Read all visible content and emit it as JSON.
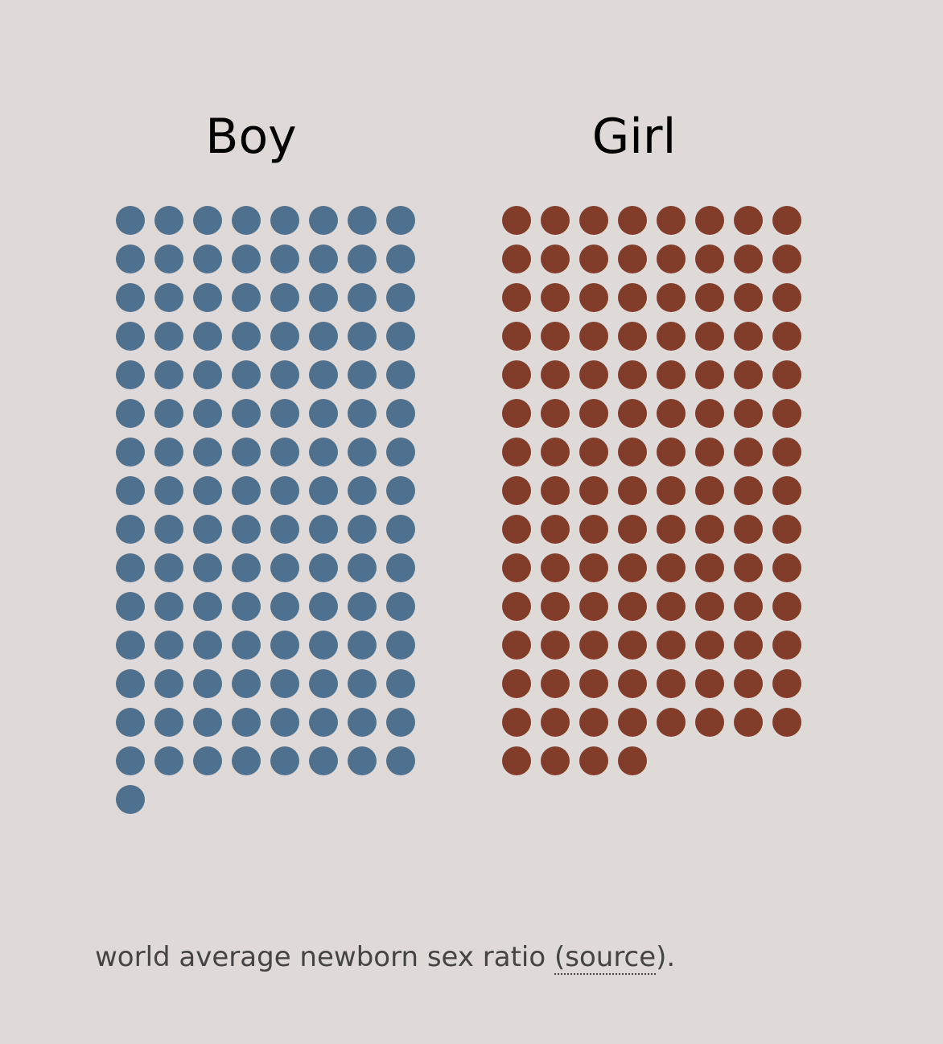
{
  "chart_data": {
    "type": "waffle",
    "series": [
      {
        "name": "Boy",
        "value": 121,
        "color": "#4f7190"
      },
      {
        "name": "Girl",
        "value": 116,
        "color": "#823c2a"
      }
    ],
    "columns_per_group": 8
  },
  "caption": {
    "text_before": "world average newborn sex ratio ",
    "link_open": "(",
    "link_label": "source",
    "link_close": ")."
  }
}
